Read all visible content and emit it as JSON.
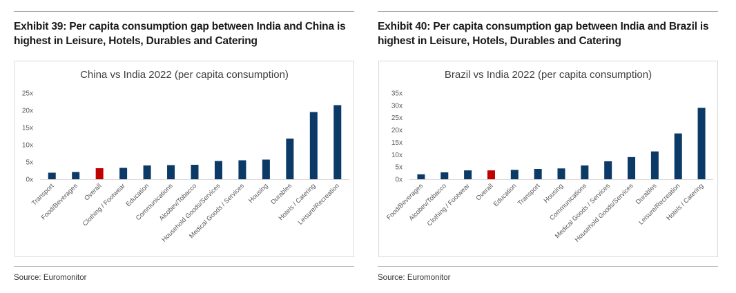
{
  "panels": [
    {
      "exhibit_title": "Exhibit 39: Per capita consumption gap between India and China is highest in Leisure, Hotels, Durables and Catering",
      "source": "Source: Euromonitor"
    },
    {
      "exhibit_title": "Exhibit 40: Per capita consumption gap between India and Brazil is highest in Leisure, Hotels, Durables and Catering",
      "source": "Source: Euromonitor"
    }
  ],
  "colors": {
    "bar": "#0b3a66",
    "highlight": "#c00000",
    "axis_text": "#595959",
    "title_text": "#404040"
  },
  "chart_data": [
    {
      "type": "bar",
      "title": "China vs India 2022 (per capita consumption)",
      "xlabel": "",
      "ylabel": "",
      "categories": [
        "Transport",
        "Food/Beverages",
        "Overall",
        "Clothing / Footwear",
        "Education",
        "Communications",
        "Alcobev/Tobacco",
        "Household Goods/Services",
        "Medical Goods / Services",
        "Housing",
        "Durables",
        "Hotels / Catering",
        "Leisure/Recreation"
      ],
      "values": [
        1.9,
        2.1,
        3.2,
        3.3,
        4.0,
        4.1,
        4.2,
        5.3,
        5.5,
        5.7,
        11.8,
        19.5,
        21.5
      ],
      "highlight_category": "Overall",
      "ylim": [
        0,
        25
      ],
      "yticks": [
        0,
        5,
        10,
        15,
        20,
        25
      ],
      "ytick_labels": [
        "0x",
        "5x",
        "10x",
        "15x",
        "20x",
        "25x"
      ],
      "grid": false,
      "legend": "none"
    },
    {
      "type": "bar",
      "title": "Brazil vs India 2022 (per capita consumption)",
      "xlabel": "",
      "ylabel": "",
      "categories": [
        "Food/Beverages",
        "Alcobev/Tobacco",
        "Clothing / Footwear",
        "Overall",
        "Education",
        "Transport",
        "Housing",
        "Communications",
        "Medical Goods / Services",
        "Household Goods/Services",
        "Durables",
        "Leisure/Recreation",
        "Hotels / Catering"
      ],
      "values": [
        2.0,
        2.8,
        3.6,
        3.6,
        3.8,
        4.2,
        4.4,
        5.6,
        7.3,
        9.0,
        11.3,
        18.6,
        29.0
      ],
      "highlight_category": "Overall",
      "ylim": [
        0,
        35
      ],
      "yticks": [
        0,
        5,
        10,
        15,
        20,
        25,
        30,
        35
      ],
      "ytick_labels": [
        "0x",
        "5x",
        "10x",
        "15x",
        "20x",
        "25x",
        "30x",
        "35x"
      ],
      "grid": false,
      "legend": "none"
    }
  ]
}
